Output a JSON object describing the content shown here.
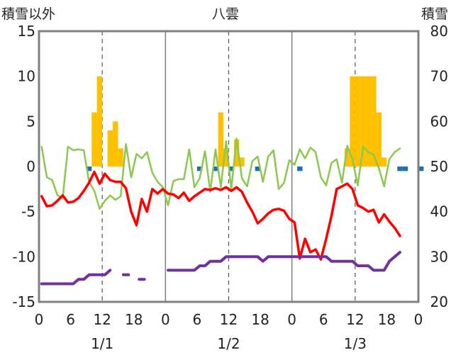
{
  "chart_data": {
    "type": "combo",
    "title": "八雲",
    "left_axis": {
      "label": "積雪以外",
      "ylim": [
        -15,
        15
      ],
      "ticks": [
        15,
        10,
        5,
        0,
        -5,
        -10,
        -15
      ]
    },
    "right_axis": {
      "label": "積雪",
      "ylim": [
        20,
        80
      ],
      "ticks": [
        80,
        70,
        60,
        50,
        40,
        30,
        20
      ]
    },
    "x_axis": {
      "hours_per_day": 24,
      "tick_labels": [
        "0",
        "6",
        "12",
        "18",
        "0",
        "6",
        "12",
        "18",
        "0",
        "6",
        "12",
        "18",
        "0"
      ],
      "date_labels": [
        "1/1",
        "1/2",
        "1/3"
      ]
    },
    "grid": {
      "horizontal": false,
      "vertical_day_lines": true,
      "noon_dashed": true
    },
    "colors": {
      "snowfall": "#FFC000",
      "precip": "#1F6FB4",
      "temperature": "#FF0000",
      "wind": "#8CC850",
      "snow_depth": "#7030A0",
      "frame": "#808080"
    },
    "series": [
      {
        "key": "snowfall",
        "type": "bar",
        "axis": "left",
        "values": [
          0,
          0,
          0,
          0,
          0,
          0,
          0,
          0,
          0,
          0,
          6,
          10,
          0,
          4,
          5,
          2,
          0,
          0,
          0,
          0,
          0,
          0,
          0,
          0,
          0,
          0,
          0,
          0,
          0,
          0,
          0,
          0,
          0,
          0,
          6,
          2,
          0,
          3,
          1,
          0,
          0,
          0,
          0,
          0,
          0,
          0,
          0,
          0,
          0,
          0,
          0,
          0,
          0,
          0,
          0,
          0,
          0,
          0,
          2,
          10,
          10,
          10,
          10,
          10,
          6,
          1,
          0,
          0,
          0,
          0,
          0,
          0
        ]
      },
      {
        "key": "precip",
        "type": "bar",
        "axis": "left",
        "values": [
          0,
          0,
          0,
          0,
          0,
          0,
          0,
          0,
          0,
          -0.5,
          0,
          0,
          0,
          0,
          0,
          0,
          0,
          0,
          0,
          0,
          0,
          0,
          0,
          0,
          0,
          0,
          0,
          0,
          0,
          0,
          -0.5,
          0,
          0,
          -0.5,
          0,
          0,
          -0.5,
          0,
          0,
          0,
          0,
          -0.5,
          0,
          0,
          0,
          0,
          0,
          0,
          0,
          -0.5,
          0,
          0,
          0,
          0,
          0,
          0,
          0,
          0,
          0,
          0,
          0,
          0,
          0,
          0,
          0,
          0,
          0,
          0,
          -0.5,
          -0.5,
          0,
          0,
          -0.5,
          0
        ]
      },
      {
        "key": "temperature",
        "type": "line",
        "axis": "left",
        "values": [
          -3.3,
          -4.4,
          -4.3,
          -3.8,
          -3.2,
          -4,
          -3.9,
          -3.5,
          -2.7,
          -1.8,
          -0.6,
          -1.9,
          -0.8,
          -1.5,
          -1.7,
          -1.7,
          -2.4,
          -5,
          -6.5,
          -3.6,
          -5,
          -2.5,
          -3,
          -2.5,
          -3,
          -3.1,
          -3.5,
          -2.9,
          -3.8,
          -3.3,
          -2.9,
          -2.5,
          -2.6,
          -2.4,
          -2.6,
          -2.3,
          -2.7,
          -2.3,
          -2.8,
          -4,
          -5,
          -6.3,
          -5.8,
          -5.2,
          -4.8,
          -4.7,
          -4.9,
          -5.8,
          -6.2,
          -10.2,
          -8,
          -9.5,
          -9.2,
          -10.3,
          -8,
          -5.5,
          -2.5,
          -2.2,
          -1.9,
          -2.5,
          -4.3,
          -4.6,
          -5,
          -4.8,
          -6.2,
          -5.3,
          -6.1,
          -6.8,
          -7.7
        ]
      },
      {
        "key": "wind",
        "type": "line",
        "axis": "left",
        "values": [
          2.2,
          -1.2,
          -1.5,
          -3.2,
          -3.5,
          2.2,
          1.8,
          1.9,
          1.8,
          -1.7,
          -2.7,
          -4.7,
          -3.8,
          -3.2,
          -3.7,
          -3.3,
          2.5,
          -1.2,
          1.4,
          0.9,
          1.6,
          -0.7,
          -1.7,
          -2.3,
          -4.3,
          -1.6,
          -1.4,
          -1.4,
          1.9,
          -2.3,
          -1.3,
          1.7,
          -2.8,
          1.9,
          -2.3,
          2.8,
          -2.5,
          3.1,
          -1.3,
          -2.2,
          0.6,
          1.1,
          -1.7,
          1.1,
          1.8,
          -2.5,
          -1.8,
          0.7,
          0.2,
          1.9,
          0.9,
          2.1,
          1.6,
          -1.2,
          -2.1,
          0.4,
          0.8,
          -1.8,
          2.3,
          0.8,
          -2.1,
          2.2,
          1.6,
          1.3,
          -0.2,
          -2.2,
          0.8,
          1.6,
          2
        ]
      },
      {
        "key": "snow_depth",
        "type": "line",
        "axis": "right",
        "values": [
          24,
          24,
          24,
          24,
          24,
          24,
          24,
          25,
          25,
          26,
          26,
          26,
          26,
          27,
          null,
          null,
          26,
          null,
          null,
          25,
          null,
          null,
          null,
          null,
          27,
          27,
          27,
          27,
          27,
          27,
          28,
          28,
          29,
          29,
          29,
          30,
          30,
          30,
          30,
          30,
          30,
          30,
          29,
          30,
          30,
          30,
          30,
          30,
          30,
          30,
          30,
          30,
          30,
          30,
          30,
          29,
          29,
          29,
          29,
          29,
          28,
          28,
          28,
          27,
          27,
          27,
          29,
          30,
          31
        ]
      }
    ]
  }
}
